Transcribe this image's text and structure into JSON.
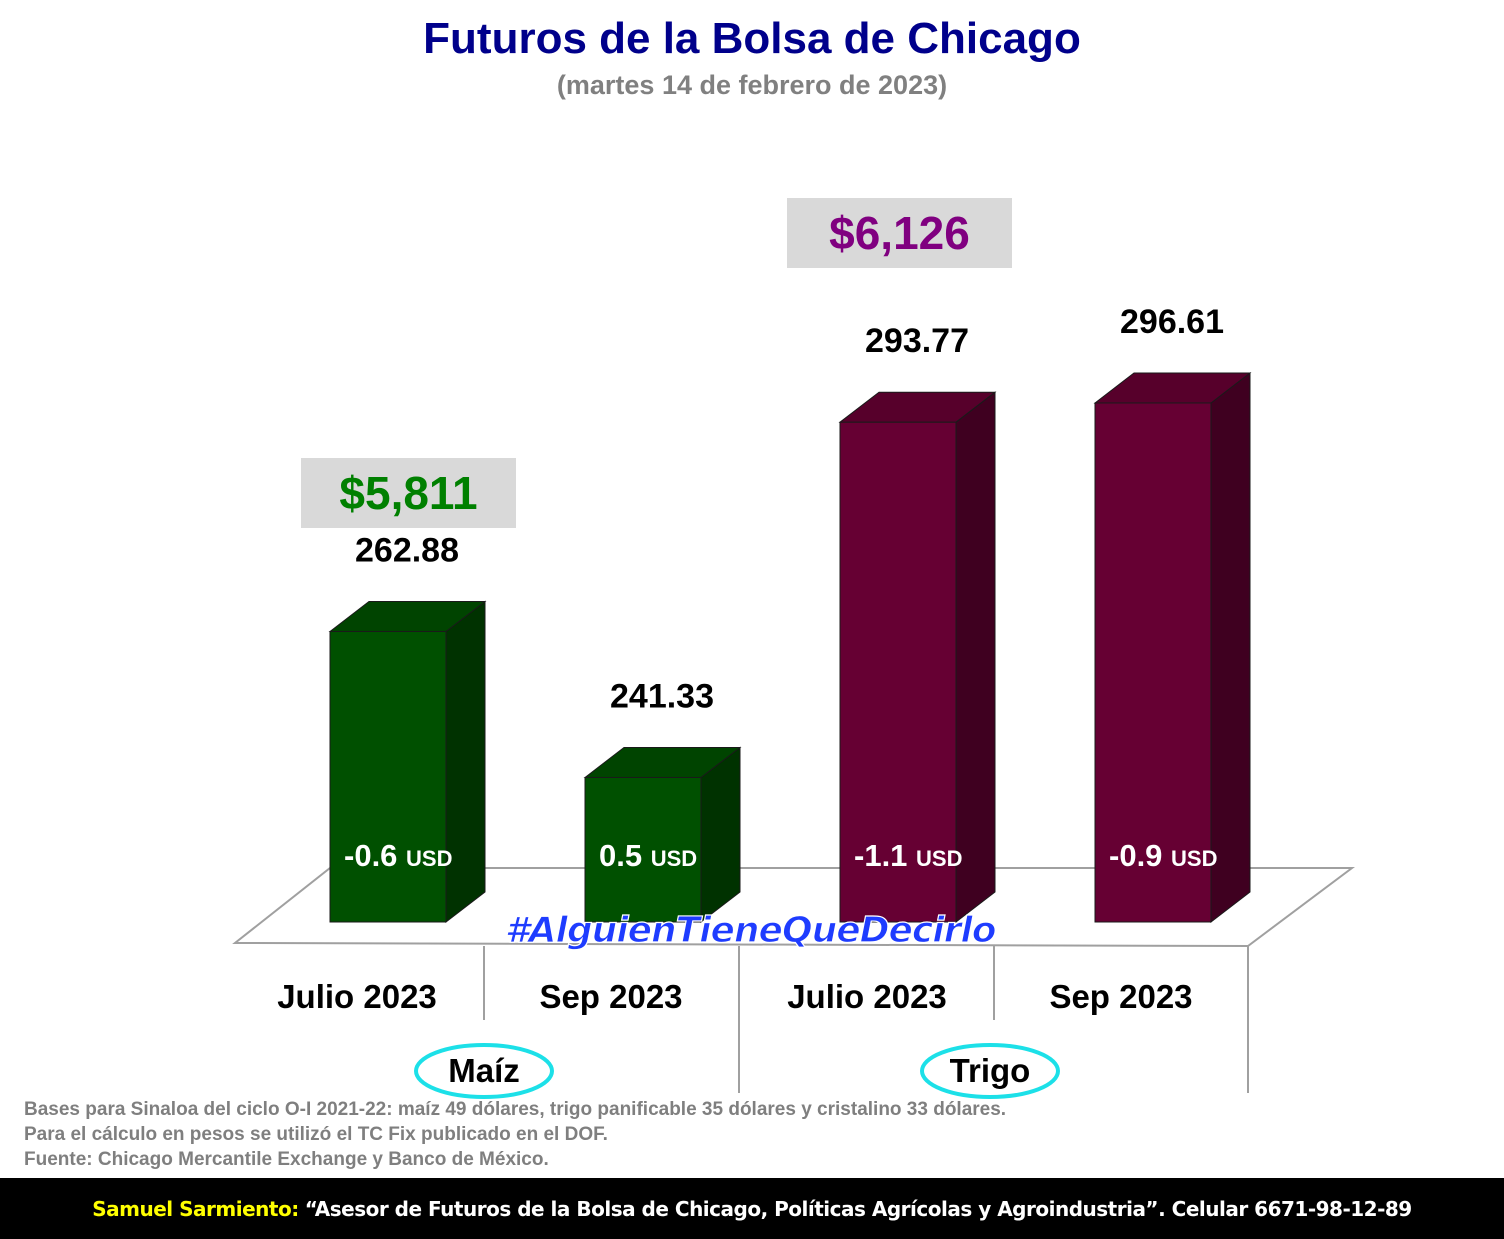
{
  "title": "Futuros de la Bolsa de Chicago",
  "subtitle": "(martes 14 de febrero de 2023)",
  "hashtag": "#AlguienTieneQueDecirlo",
  "notes": [
    "Bases para Sinaloa del ciclo O-I 2021-22: maíz 49 dólares, trigo panificable 35 dólares y cristalino 33 dólares.",
    "Para el cálculo en pesos se utilizó el TC Fix publicado en el DOF.",
    "Fuente: Chicago Mercantile Exchange y Banco de México."
  ],
  "footer": {
    "name": "Samuel Sarmiento:",
    "text": "“Asesor de Futuros de la Bolsa de Chicago, Políticas Agrícolas y Agroindustria”. Celular 6671-98-12-89"
  },
  "chart_data": {
    "type": "bar",
    "categories": [
      "Julio 2023",
      "Sep 2023",
      "Julio 2023",
      "Sep 2023"
    ],
    "groups": [
      {
        "name": "Maíz",
        "categories": [
          0,
          1
        ]
      },
      {
        "name": "Trigo",
        "categories": [
          2,
          3
        ]
      }
    ],
    "values": [
      262.88,
      241.33,
      293.77,
      296.61
    ],
    "value_labels": [
      "262.88",
      "241.33",
      "293.77",
      "296.61"
    ],
    "changes": [
      "-0.6",
      "0.5",
      "-1.1",
      "-0.9"
    ],
    "change_unit": "USD",
    "peso_prices": [
      {
        "group": "Maíz",
        "value": "$5,811"
      },
      {
        "group": "Trigo",
        "value": "$6,126"
      }
    ],
    "colors": {
      "maiz": "#005000",
      "trigo": "#660033",
      "maiz_peso": "#008000",
      "trigo_peso": "#800080"
    },
    "ylim": [
      220,
      300
    ],
    "style": "3d-bars",
    "grid": false
  }
}
